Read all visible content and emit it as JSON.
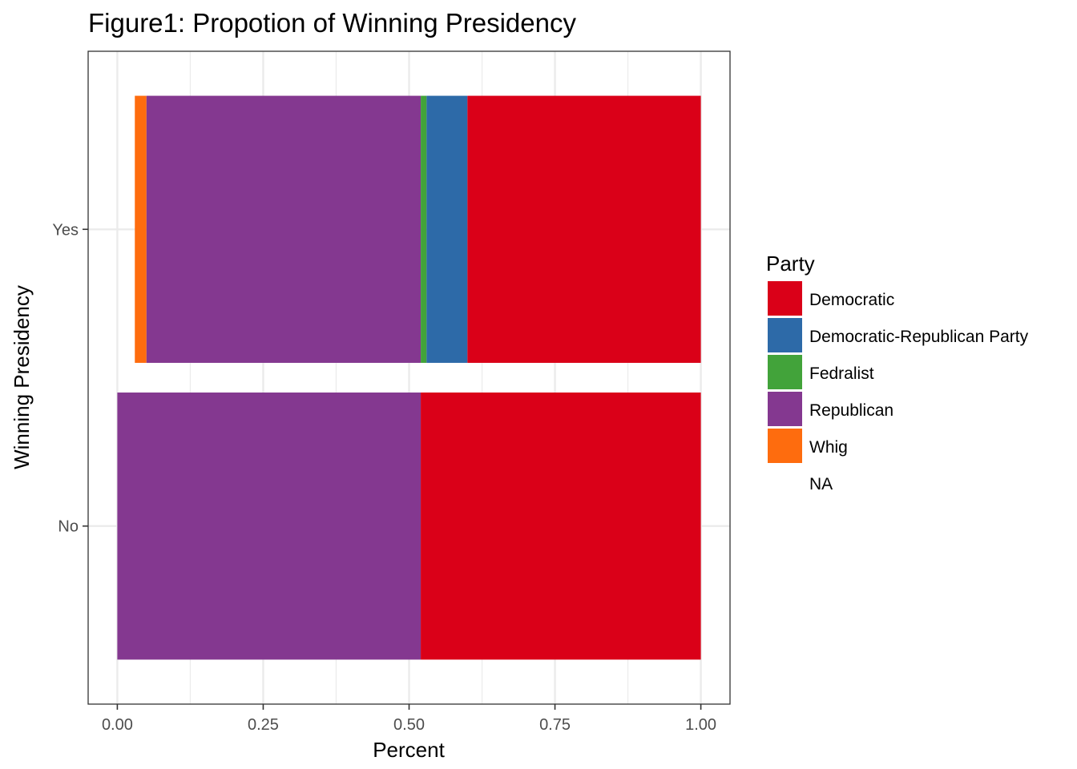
{
  "chart_data": {
    "type": "bar",
    "orientation": "horizontal",
    "stacked": true,
    "title": "Figure1: Propotion of Winning Presidency",
    "xlabel": "Percent",
    "ylabel": "Winning Presidency",
    "xlim": [
      -0.05,
      1.05
    ],
    "x_ticks": [
      0,
      0.25,
      0.5,
      0.75,
      1.0
    ],
    "x_tick_labels": [
      "0.00",
      "0.25",
      "0.50",
      "0.75",
      "1.00"
    ],
    "categories": [
      "Yes",
      "No"
    ],
    "grid": true,
    "legend_position": "right",
    "legend": {
      "title": "Party",
      "entries": [
        {
          "label": "Democratic",
          "color": "#da0018"
        },
        {
          "label": "Democratic-Republican Party",
          "color": "#2d6aa8"
        },
        {
          "label": "Fedralist",
          "color": "#42a33a"
        },
        {
          "label": "Republican",
          "color": "#843890"
        },
        {
          "label": "Whig",
          "color": "#fe6c0e"
        },
        {
          "label": "NA",
          "color": "none"
        }
      ]
    },
    "series": [
      {
        "name": "Whig",
        "color": "#fe6c0e",
        "values": [
          0.02,
          0.0
        ]
      },
      {
        "name": "Republican",
        "color": "#843890",
        "values": [
          0.47,
          0.52
        ]
      },
      {
        "name": "Fedralist",
        "color": "#42a33a",
        "values": [
          0.01,
          0.0
        ]
      },
      {
        "name": "Democratic-Republican Party",
        "color": "#2d6aa8",
        "values": [
          0.07,
          0.0
        ]
      },
      {
        "name": "Democratic",
        "color": "#da0018",
        "values": [
          0.4,
          0.48
        ]
      }
    ],
    "bar_start": [
      0.03,
      0.0
    ]
  }
}
